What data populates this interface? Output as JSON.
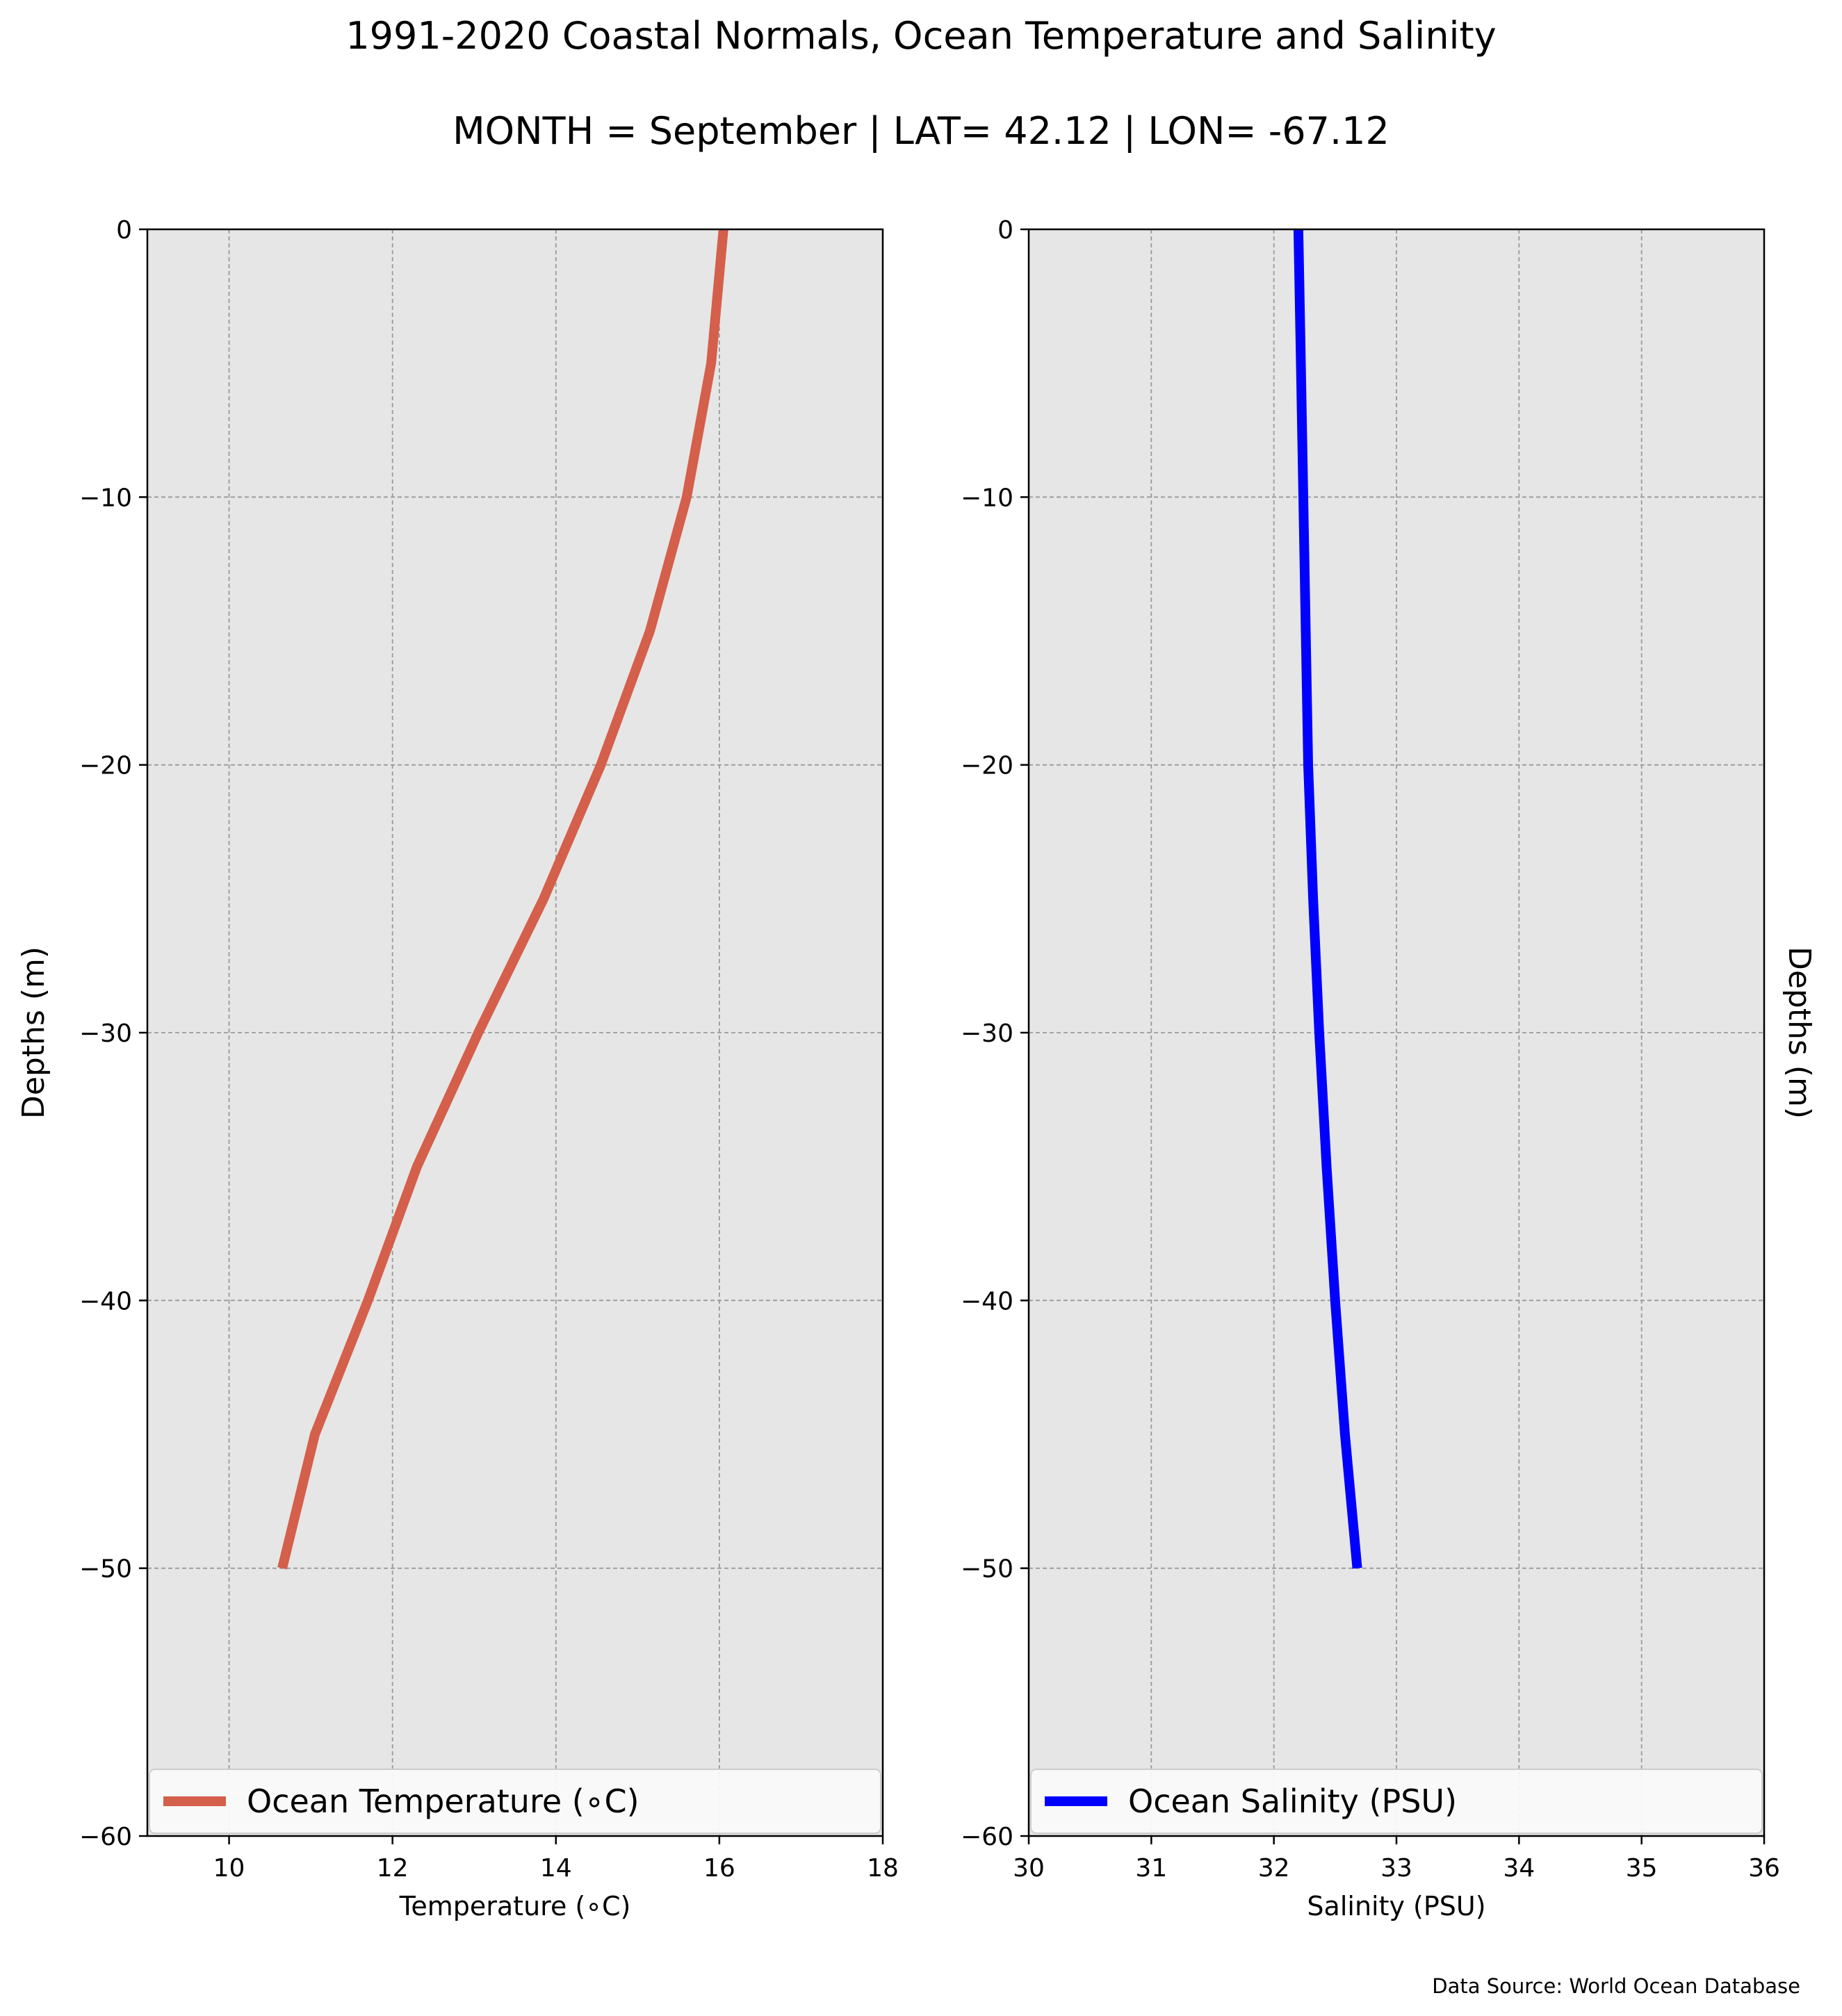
{
  "figure": {
    "title": "1991-2020 Coastal Normals, Ocean Temperature and Salinity",
    "subtitle": "MONTH = September | LAT= 42.12 | LON= -67.12",
    "source": "Data Source: World Ocean Database"
  },
  "chart_data": [
    {
      "type": "line",
      "orientation": "depth-profile",
      "xlabel": "Temperature (∘C)",
      "ylabel": "Depths (m)",
      "xlim": [
        9,
        18
      ],
      "ylim": [
        -60,
        0
      ],
      "xticks": [
        10,
        12,
        14,
        16,
        18
      ],
      "yticks": [
        0,
        -10,
        -20,
        -30,
        -40,
        -50,
        -60
      ],
      "grid": true,
      "legend_position": "lower center",
      "background": "#e6e6e6",
      "series": [
        {
          "name": "Ocean Temperature (∘C)",
          "color": "#d45f4b",
          "points": [
            {
              "x": 16.05,
              "y": 0
            },
            {
              "x": 15.9,
              "y": -5
            },
            {
              "x": 15.6,
              "y": -10
            },
            {
              "x": 15.15,
              "y": -15
            },
            {
              "x": 14.55,
              "y": -20
            },
            {
              "x": 13.85,
              "y": -25
            },
            {
              "x": 13.05,
              "y": -30
            },
            {
              "x": 12.3,
              "y": -35
            },
            {
              "x": 11.7,
              "y": -40
            },
            {
              "x": 11.05,
              "y": -45
            },
            {
              "x": 10.65,
              "y": -50
            }
          ]
        }
      ]
    },
    {
      "type": "line",
      "orientation": "depth-profile",
      "xlabel": "Salinity (PSU)",
      "ylabel": "Depths (m)",
      "xlim": [
        30,
        36
      ],
      "ylim": [
        -60,
        0
      ],
      "xticks": [
        30,
        31,
        32,
        33,
        34,
        35,
        36
      ],
      "yticks": [
        0,
        -10,
        -20,
        -30,
        -40,
        -50,
        -60
      ],
      "grid": true,
      "legend_position": "lower center",
      "ylabel_side": "right",
      "background": "#e6e6e6",
      "series": [
        {
          "name": "Ocean Salinity (PSU)",
          "color": "#0000ff",
          "points": [
            {
              "x": 32.2,
              "y": 0
            },
            {
              "x": 32.22,
              "y": -5
            },
            {
              "x": 32.24,
              "y": -10
            },
            {
              "x": 32.26,
              "y": -15
            },
            {
              "x": 32.28,
              "y": -20
            },
            {
              "x": 32.32,
              "y": -25
            },
            {
              "x": 32.37,
              "y": -30
            },
            {
              "x": 32.43,
              "y": -35
            },
            {
              "x": 32.5,
              "y": -40
            },
            {
              "x": 32.58,
              "y": -45
            },
            {
              "x": 32.68,
              "y": -50
            }
          ]
        }
      ]
    }
  ]
}
